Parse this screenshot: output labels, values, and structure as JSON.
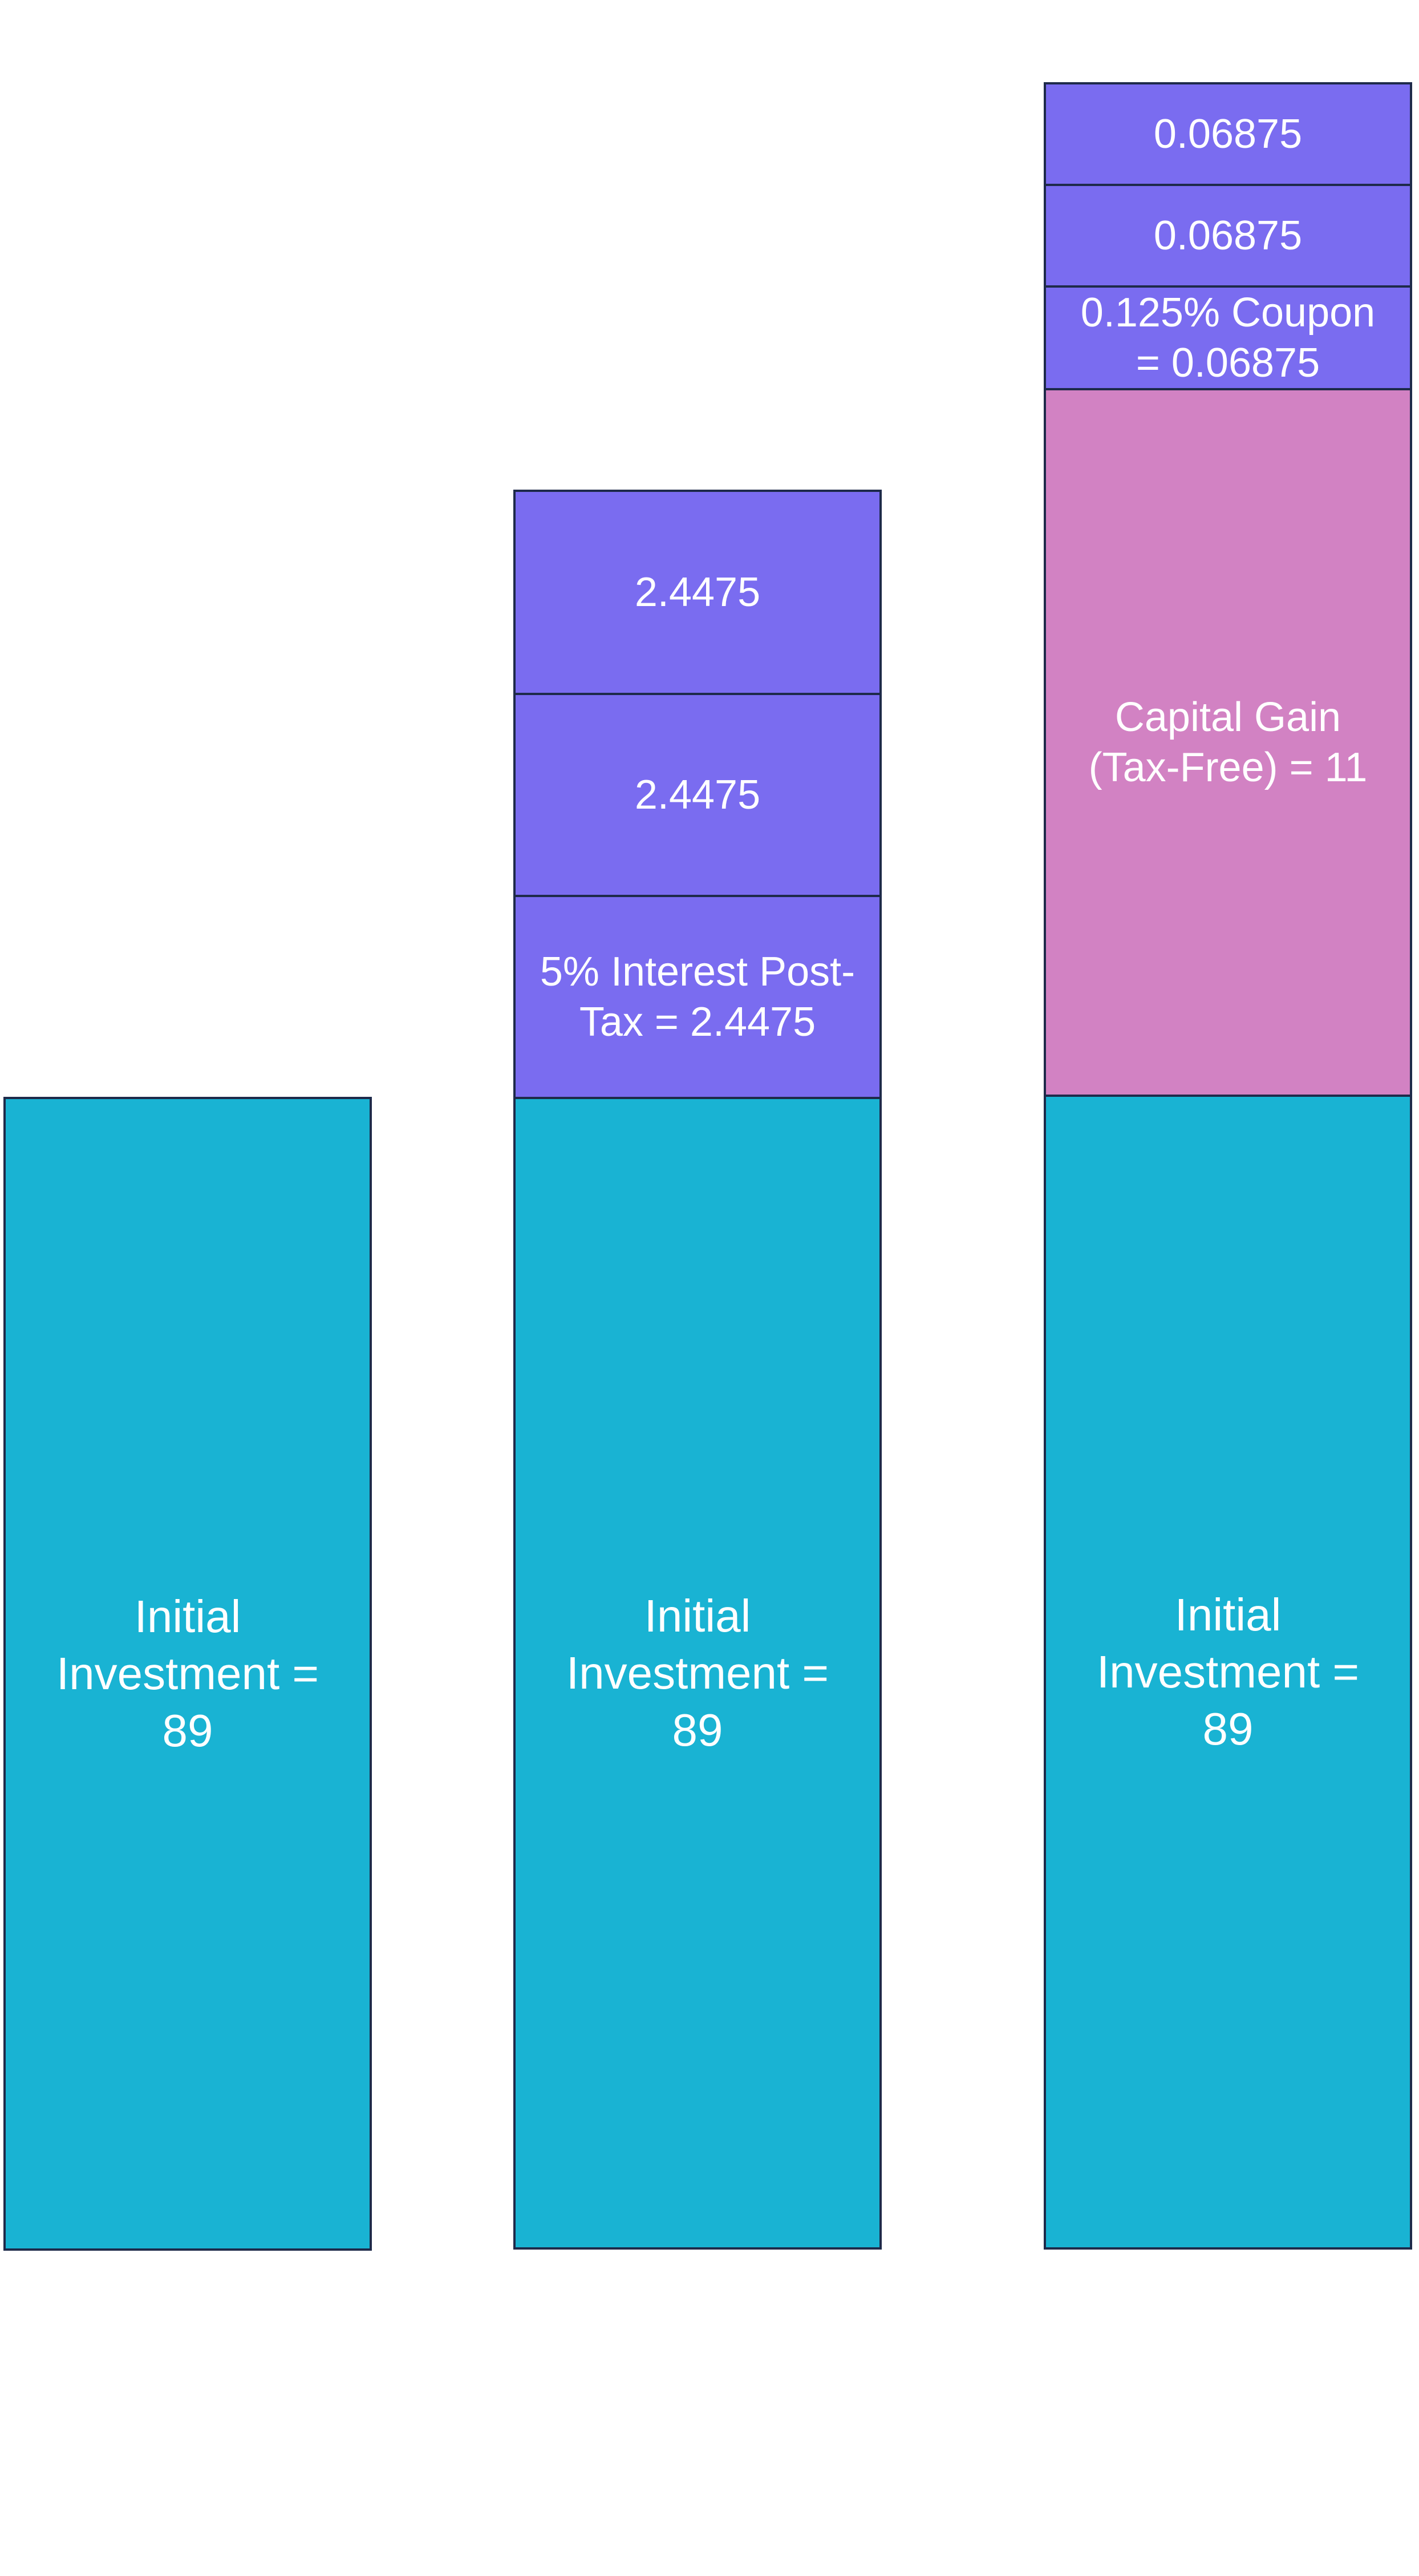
{
  "colors": {
    "initial_investment": "#19b3d3",
    "interest_coupon": "#7a6cf0",
    "capital_gain": "#d282c3",
    "border": "#1e2a4a"
  },
  "columns": [
    {
      "name": "column-1",
      "blocks": [
        {
          "kind": "initial_investment",
          "value": 89,
          "label": "Initial\nInvestment =\n89"
        }
      ]
    },
    {
      "name": "column-2",
      "blocks": [
        {
          "kind": "initial_investment",
          "value": 89,
          "label": "Initial\nInvestment =\n89"
        },
        {
          "kind": "interest",
          "value": 2.4475,
          "label": "5% Interest Post-\nTax = 2.4475"
        },
        {
          "kind": "interest",
          "value": 2.4475,
          "label": "2.4475"
        },
        {
          "kind": "interest",
          "value": 2.4475,
          "label": "2.4475"
        }
      ]
    },
    {
      "name": "column-3",
      "blocks": [
        {
          "kind": "initial_investment",
          "value": 89,
          "label": "Initial\nInvestment =\n89"
        },
        {
          "kind": "capital_gain",
          "value": 11,
          "label": "Capital Gain\n(Tax-Free) = 11"
        },
        {
          "kind": "coupon",
          "value": 0.06875,
          "label": "0.125% Coupon\n= 0.06875"
        },
        {
          "kind": "coupon",
          "value": 0.06875,
          "label": "0.06875"
        },
        {
          "kind": "coupon",
          "value": 0.06875,
          "label": "0.06875"
        }
      ]
    }
  ]
}
